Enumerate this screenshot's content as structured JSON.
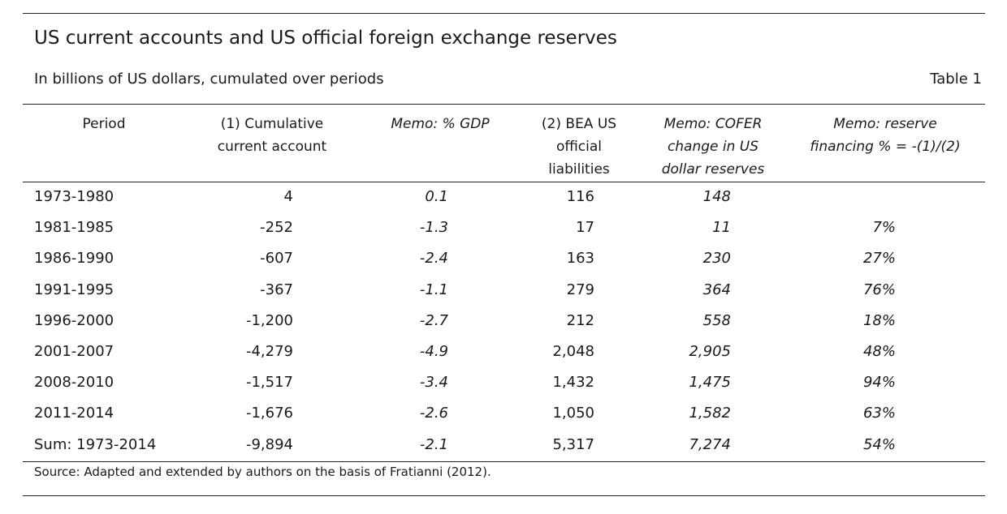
{
  "title": "US current accounts and US official foreign exchange reserves",
  "subtitle": "In billions of US dollars, cumulated over periods",
  "table_label": "Table 1",
  "headers": [
    "Period",
    "(1) Cumulative\ncurrent account",
    "Memo: % GDP",
    "(2) BEA US\nofficial\nliabilities",
    "Memo: COFER\nchange in US\ndollar reserves",
    "Memo: reserve\nfinancing % = -(1)/(2)"
  ],
  "rows": [
    [
      "1973-1980",
      "4",
      "0.1",
      "116",
      "148",
      ""
    ],
    [
      "1981-1985",
      "-252",
      "-1.3",
      "17",
      "11",
      "7%"
    ],
    [
      "1986-1990",
      "-607",
      "-2.4",
      "163",
      "230",
      "27%"
    ],
    [
      "1991-1995",
      "-367",
      "-1.1",
      "279",
      "364",
      "76%"
    ],
    [
      "1996-2000",
      "-1,200",
      "-2.7",
      "212",
      "558",
      "18%"
    ],
    [
      "2001-2007",
      "-4,279",
      "-4.9",
      "2,048",
      "2,905",
      "48%"
    ],
    [
      "2008-2010",
      "-1,517",
      "-3.4",
      "1,432",
      "1,475",
      "94%"
    ],
    [
      "2011-2014",
      "-1,676",
      "-2.6",
      "1,050",
      "1,582",
      "63%"
    ],
    [
      "Sum: 1973-2014",
      "-9,894",
      "-2.1",
      "5,317",
      "7,274",
      "54%"
    ]
  ],
  "source": "Source: Adapted and extended by authors on the basis of Fratianni (2012)."
}
